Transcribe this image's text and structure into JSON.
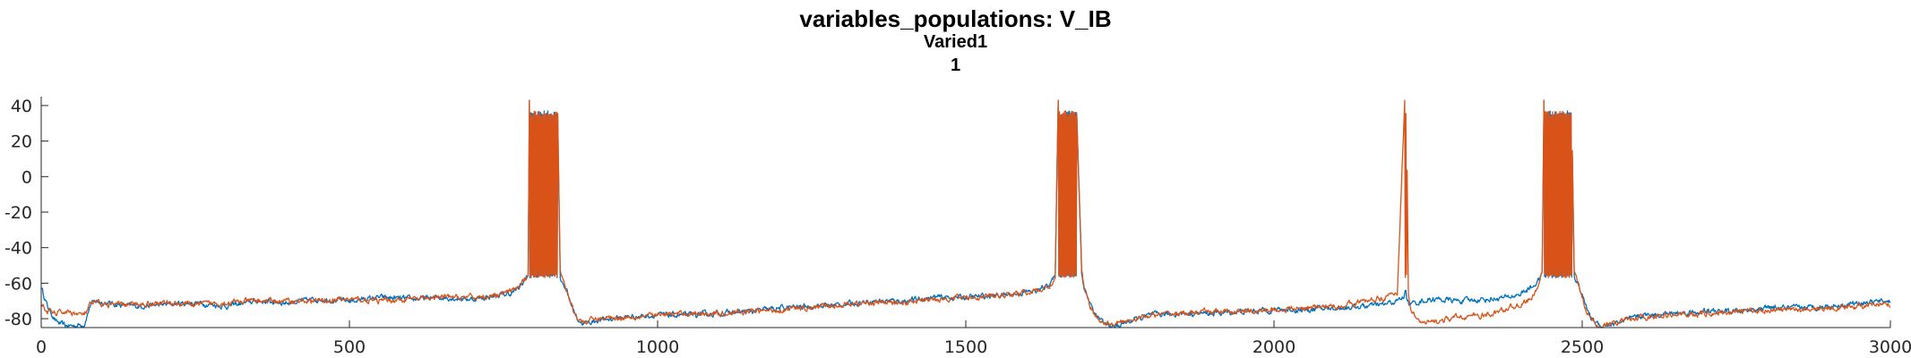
{
  "chart_data": {
    "type": "line",
    "title": "variables_populations: V_IB",
    "subtitle": "Varied1",
    "subtitle2": "1",
    "xlabel": "",
    "ylabel": "",
    "xlim": [
      0,
      3000
    ],
    "ylim": [
      -85,
      45
    ],
    "xticks": [
      0,
      500,
      1000,
      1500,
      2000,
      2500,
      3000
    ],
    "yticks": [
      -80,
      -60,
      -40,
      -20,
      0,
      20,
      40
    ],
    "grid": false,
    "legend": "none",
    "colors": [
      "#0072BD",
      "#D95319"
    ],
    "series": [
      {
        "color": "#0072BD",
        "x": [
          0,
          10,
          25,
          40,
          55,
          70,
          80,
          90,
          100,
          150,
          200,
          250,
          300,
          350,
          400,
          450,
          500,
          550,
          600,
          650,
          700,
          740,
          760,
          775,
          785,
          790,
          792,
          800,
          820,
          838,
          842,
          850,
          860,
          870,
          880,
          900,
          950,
          1000,
          1050,
          1100,
          1150,
          1200,
          1250,
          1300,
          1350,
          1400,
          1450,
          1500,
          1550,
          1580,
          1600,
          1620,
          1635,
          1645,
          1650,
          1660,
          1680,
          1688,
          1692,
          1700,
          1710,
          1725,
          1740,
          1760,
          1800,
          1850,
          1900,
          1950,
          2000,
          2050,
          2100,
          2150,
          2180,
          2200,
          2210,
          2214,
          2216,
          2220,
          2230,
          2240,
          2260,
          2300,
          2350,
          2380,
          2400,
          2420,
          2430,
          2435,
          2438,
          2450,
          2470,
          2483,
          2487,
          2495,
          2505,
          2515,
          2530,
          2550,
          2600,
          2650,
          2700,
          2750,
          2800,
          2850,
          2900,
          2950,
          3000
        ],
        "y": [
          -62,
          -73,
          -82,
          -84,
          -84,
          -83,
          -72,
          -70,
          -71,
          -73,
          -72,
          -71,
          -73,
          -70,
          -71,
          -69,
          -70,
          -68,
          -69,
          -68,
          -69,
          -67,
          -66,
          -63,
          -58,
          -55,
          43,
          34,
          34,
          34,
          -57,
          -62,
          -72,
          -80,
          -83,
          -81,
          -79,
          -78,
          -78,
          -77,
          -76,
          -74,
          -73,
          -72,
          -70,
          -70,
          -68,
          -68,
          -67,
          -66,
          -65,
          -64,
          -60,
          -57,
          43,
          36,
          35,
          -55,
          -62,
          -70,
          -78,
          -83,
          -85,
          -82,
          -78,
          -77,
          -77,
          -76,
          -75,
          -75,
          -74,
          -73,
          -72,
          -70,
          -68,
          -63,
          -70,
          -72,
          -71,
          -70,
          -69,
          -70,
          -69,
          -68,
          -66,
          -62,
          -58,
          -55,
          43,
          36,
          35,
          35,
          -55,
          -62,
          -72,
          -80,
          -84,
          -83,
          -78,
          -77,
          -76,
          -76,
          -74,
          -74,
          -73,
          -71,
          -70
        ]
      },
      {
        "color": "#D95319",
        "x": [
          0,
          10,
          25,
          40,
          55,
          70,
          80,
          90,
          100,
          150,
          200,
          250,
          300,
          350,
          400,
          450,
          500,
          550,
          600,
          650,
          700,
          740,
          760,
          775,
          785,
          790,
          792,
          800,
          820,
          838,
          842,
          850,
          860,
          870,
          880,
          900,
          950,
          1000,
          1050,
          1100,
          1150,
          1200,
          1250,
          1300,
          1350,
          1400,
          1450,
          1500,
          1550,
          1580,
          1600,
          1620,
          1635,
          1645,
          1650,
          1660,
          1680,
          1688,
          1692,
          1700,
          1710,
          1725,
          1740,
          1760,
          1800,
          1850,
          1900,
          1950,
          2000,
          2050,
          2100,
          2150,
          2180,
          2200,
          2212,
          2215,
          2218,
          2222,
          2230,
          2240,
          2260,
          2300,
          2350,
          2380,
          2400,
          2420,
          2430,
          2435,
          2438,
          2450,
          2470,
          2483,
          2487,
          2495,
          2505,
          2515,
          2530,
          2550,
          2600,
          2650,
          2700,
          2750,
          2800,
          2850,
          2900,
          2950,
          3000
        ],
        "y": [
          -72,
          -76,
          -77,
          -76,
          -77,
          -78,
          -72,
          -71,
          -72,
          -72,
          -71,
          -72,
          -71,
          -70,
          -70,
          -70,
          -69,
          -70,
          -69,
          -68,
          -68,
          -67,
          -65,
          -62,
          -58,
          -54,
          43,
          36,
          35,
          35,
          -53,
          -62,
          -72,
          -80,
          -82,
          -80,
          -79,
          -78,
          -77,
          -77,
          -76,
          -75,
          -74,
          -72,
          -71,
          -71,
          -69,
          -68,
          -67,
          -66,
          -65,
          -64,
          -62,
          -57,
          43,
          35,
          35,
          -54,
          -62,
          -72,
          -79,
          -82,
          -83,
          -81,
          -78,
          -77,
          -76,
          -76,
          -75,
          -74,
          -73,
          -70,
          -68,
          -66,
          43,
          38,
          -67,
          -74,
          -79,
          -83,
          -82,
          -79,
          -78,
          -74,
          -72,
          -68,
          -60,
          -54,
          43,
          36,
          35,
          35,
          -54,
          -62,
          -74,
          -81,
          -84,
          -83,
          -79,
          -78,
          -77,
          -76,
          -75,
          -75,
          -74,
          -73,
          -72
        ]
      }
    ]
  }
}
